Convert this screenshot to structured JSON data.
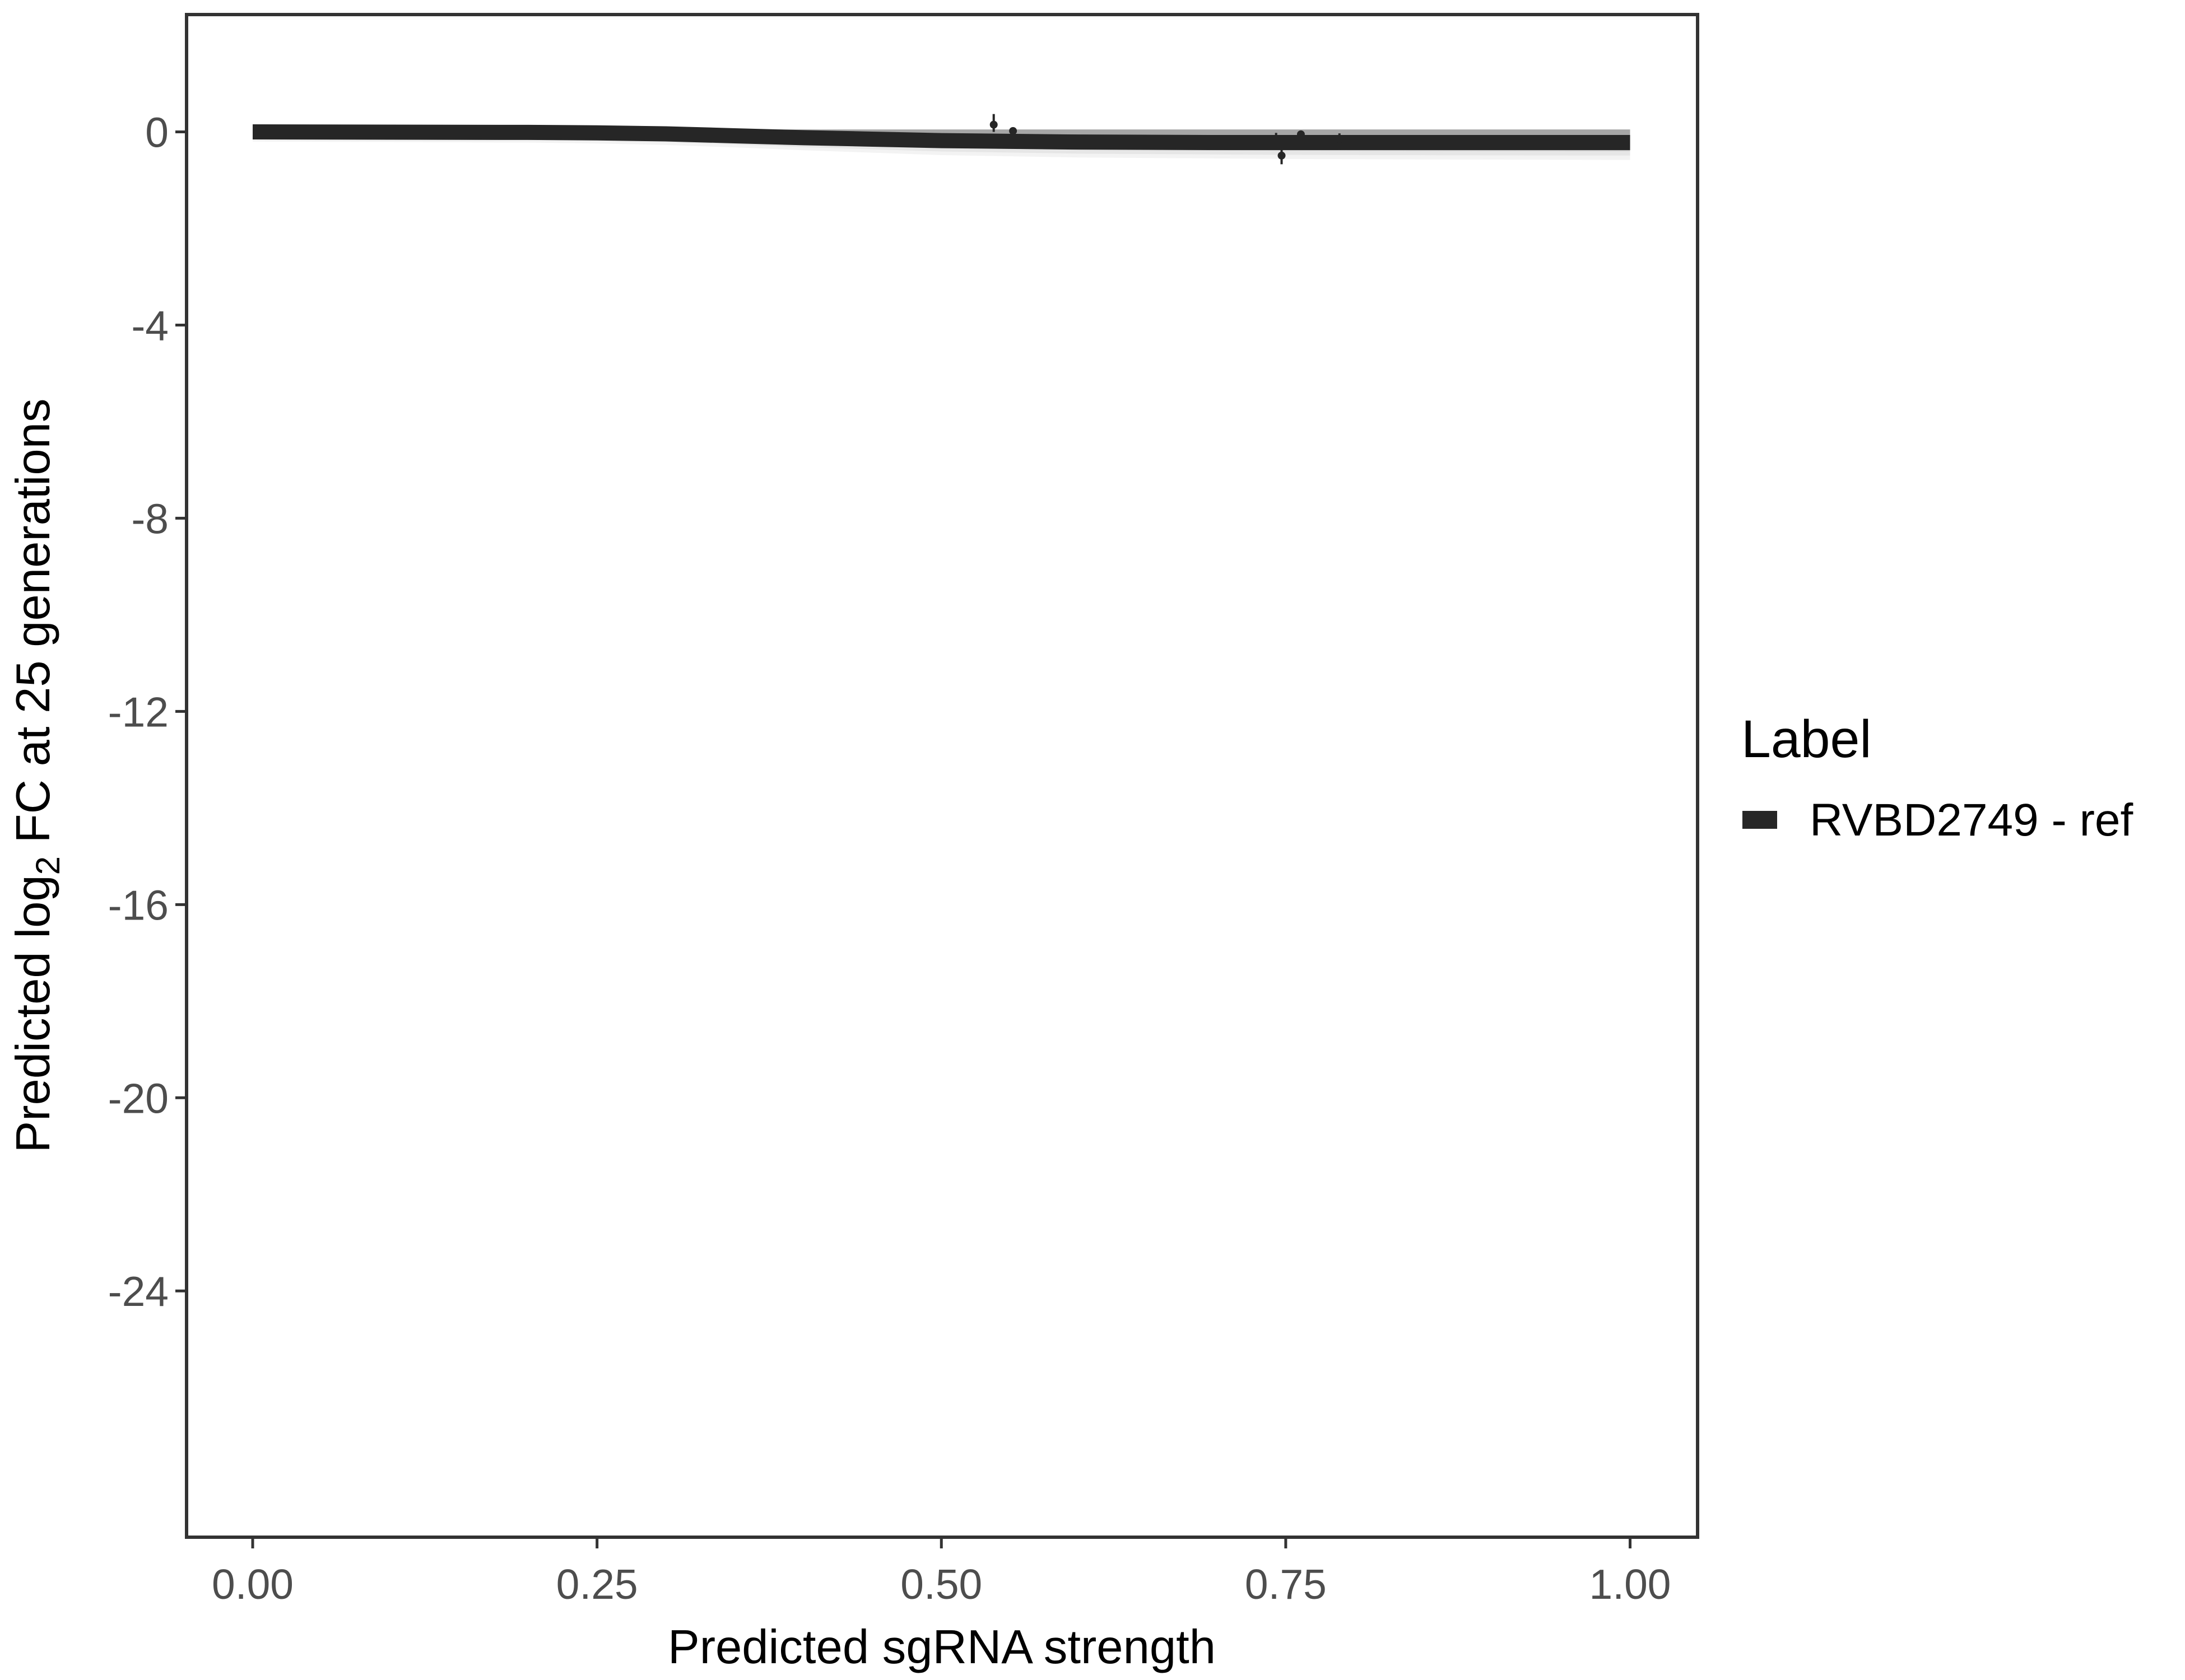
{
  "chart_data": {
    "type": "line",
    "title": "",
    "xlabel": "Predicted sgRNA strength",
    "ylabel_parts": {
      "pre": "Predicted  log",
      "sub": "2",
      "post": " FC at 25 generations"
    },
    "xlim": [
      -0.048,
      1.049
    ],
    "ylim": [
      -29.1,
      2.43
    ],
    "x_ticks": [
      0,
      0.25,
      0.5,
      0.75,
      1
    ],
    "x_tick_labels": [
      "0.00",
      "0.25",
      "0.50",
      "0.75",
      "1.00"
    ],
    "y_ticks": [
      0,
      -4,
      -8,
      -12,
      -16,
      -20,
      -24
    ],
    "y_tick_labels": [
      "0",
      "-4",
      "-8",
      "-12",
      "-16",
      "-20",
      "-24"
    ],
    "grid": false,
    "legend": {
      "title": "Label",
      "placement": "right",
      "entries": [
        "RVBD2749 - ref"
      ]
    },
    "series": [
      {
        "name": "RVBD2749 - ref",
        "color": "#262626",
        "line": {
          "x": [
            0,
            0.1,
            0.2,
            0.25,
            0.3,
            0.35,
            0.4,
            0.45,
            0.5,
            0.6,
            0.7,
            0.75,
            0.85,
            1.0
          ],
          "y": [
            0,
            -0.005,
            -0.01,
            -0.02,
            -0.04,
            -0.08,
            -0.12,
            -0.15,
            -0.18,
            -0.21,
            -0.22,
            -0.22,
            -0.22,
            -0.22
          ]
        },
        "ribbon_lower": [
          -0.2,
          -0.21,
          -0.22,
          -0.24,
          -0.27,
          -0.32,
          -0.38,
          -0.43,
          -0.48,
          -0.53,
          -0.55,
          -0.56,
          -0.57,
          -0.58
        ],
        "ribbon_upper": [
          0.05,
          0.05,
          0.05,
          0.05,
          0.05,
          0.05,
          0.05,
          0.05,
          0.05,
          0.05,
          0.05,
          0.05,
          0.05,
          0.05
        ],
        "points": [
          {
            "x": 0.538,
            "y": 0.15,
            "ymin": 0.0,
            "ymax": 0.37
          },
          {
            "x": 0.552,
            "y": 0.02,
            "ymin": -0.03,
            "ymax": 0.07
          },
          {
            "x": 0.743,
            "y": -0.15,
            "ymin": -0.3,
            "ymax": -0.02
          },
          {
            "x": 0.747,
            "y": -0.49,
            "ymin": -0.67,
            "ymax": -0.37
          },
          {
            "x": 0.761,
            "y": -0.05,
            "ymin": -0.1,
            "ymax": 0.03
          },
          {
            "x": 0.789,
            "y": -0.15,
            "ymin": -0.3,
            "ymax": -0.03
          }
        ]
      }
    ],
    "ribbon_color": "#a6a6a6"
  }
}
